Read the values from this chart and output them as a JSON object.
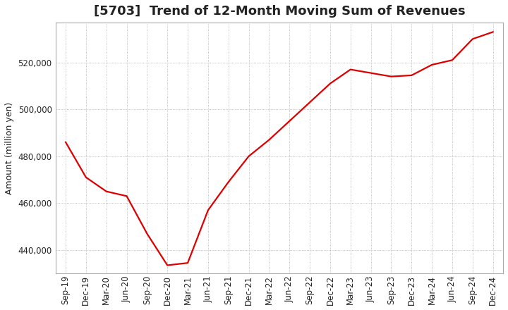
{
  "title": "[5703]  Trend of 12-Month Moving Sum of Revenues",
  "ylabel": "Amount (million yen)",
  "line_color": "#dd0000",
  "background_color": "#ffffff",
  "grid_color": "#aaaaaa",
  "x_labels": [
    "Sep-19",
    "Dec-19",
    "Mar-20",
    "Jun-20",
    "Sep-20",
    "Dec-20",
    "Mar-21",
    "Jun-21",
    "Sep-21",
    "Dec-21",
    "Mar-22",
    "Jun-22",
    "Sep-22",
    "Dec-22",
    "Mar-23",
    "Jun-23",
    "Sep-23",
    "Dec-23",
    "Mar-24",
    "Jun-24",
    "Sep-24",
    "Dec-24"
  ],
  "y_values": [
    486000,
    471000,
    465000,
    463000,
    447000,
    433500,
    434500,
    457000,
    469000,
    480000,
    487000,
    495000,
    503000,
    511000,
    517000,
    515500,
    514000,
    514500,
    519000,
    521000,
    530000,
    533000
  ],
  "ylim_min": 430000,
  "ylim_max": 537000,
  "yticks": [
    440000,
    460000,
    480000,
    500000,
    520000
  ],
  "title_fontsize": 13,
  "axis_fontsize": 9,
  "tick_fontsize": 8.5
}
